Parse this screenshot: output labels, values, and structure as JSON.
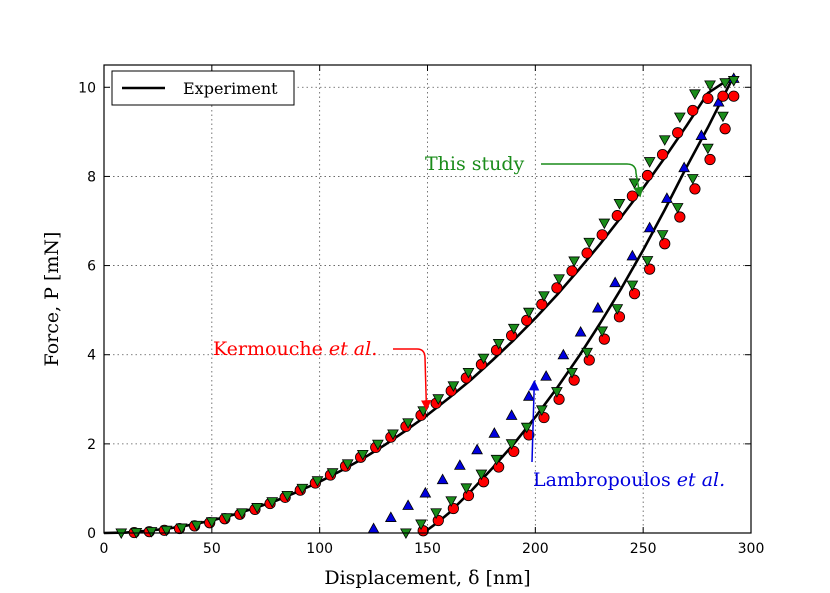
{
  "chart_data": {
    "type": "line",
    "xlabel": "Displacement, δ [nm]",
    "ylabel": "Force, P [mN]",
    "xlim": [
      0,
      300
    ],
    "ylim": [
      0,
      10.5
    ],
    "xticks": [
      0,
      50,
      100,
      150,
      200,
      250,
      300
    ],
    "yticks": [
      0,
      2,
      4,
      6,
      8,
      10
    ],
    "grid": true,
    "legend": {
      "location": "top-left",
      "entries": [
        "Experiment"
      ]
    },
    "colors": {
      "experiment": "#000000",
      "this_study": "#1a8c1a",
      "kermouche": "#ff0000",
      "lambropoulos": "#0000dd"
    },
    "series": [
      {
        "name": "Experiment (loading)",
        "style": "line",
        "x": [
          0,
          10,
          20,
          30,
          40,
          50,
          60,
          70,
          80,
          90,
          100,
          110,
          120,
          130,
          140,
          150,
          160,
          170,
          180,
          190,
          200,
          210,
          220,
          230,
          240,
          250,
          260,
          270,
          280,
          292
        ],
        "y": [
          0,
          0.01,
          0.05,
          0.1,
          0.18,
          0.28,
          0.41,
          0.56,
          0.73,
          0.93,
          1.15,
          1.4,
          1.67,
          1.97,
          2.3,
          2.65,
          3.03,
          3.43,
          3.87,
          4.33,
          4.82,
          5.34,
          5.9,
          6.48,
          7.1,
          7.74,
          8.42,
          9.13,
          9.87,
          10.25
        ]
      },
      {
        "name": "Experiment (unloading)",
        "style": "line",
        "x": [
          148,
          155,
          160,
          170,
          180,
          190,
          200,
          210,
          220,
          230,
          240,
          250,
          260,
          270,
          280,
          292
        ],
        "y": [
          0,
          0.25,
          0.45,
          0.93,
          1.45,
          2.0,
          2.6,
          3.25,
          3.95,
          4.7,
          5.5,
          6.35,
          7.25,
          8.2,
          9.1,
          10.25
        ]
      },
      {
        "name": "This study (loading)",
        "marker": "triangle-down",
        "x": [
          8,
          15,
          22,
          29,
          36,
          43,
          50,
          57,
          64,
          71,
          78,
          85,
          92,
          99,
          106,
          113,
          120,
          127,
          134,
          141,
          148,
          155,
          162,
          169,
          176,
          183,
          190,
          197,
          204,
          211,
          218,
          225,
          232,
          239,
          246,
          253,
          260,
          267,
          274,
          281,
          288,
          292
        ],
        "y": [
          0,
          0.01,
          0.03,
          0.06,
          0.11,
          0.17,
          0.25,
          0.34,
          0.45,
          0.57,
          0.7,
          0.84,
          1.0,
          1.17,
          1.35,
          1.55,
          1.76,
          1.99,
          2.22,
          2.47,
          2.74,
          3.01,
          3.3,
          3.6,
          3.92,
          4.25,
          4.59,
          4.95,
          5.32,
          5.7,
          6.1,
          6.52,
          6.95,
          7.39,
          7.85,
          8.33,
          8.82,
          9.33,
          9.85,
          10.05,
          10.1,
          10.15
        ]
      },
      {
        "name": "This study (unloading)",
        "marker": "triangle-down",
        "x": [
          140,
          147,
          154,
          161,
          168,
          175,
          182,
          189,
          196,
          203,
          210,
          217,
          224,
          231,
          238,
          245,
          252,
          259,
          266,
          273,
          280,
          287
        ],
        "y": [
          0,
          0.2,
          0.45,
          0.72,
          1.01,
          1.32,
          1.65,
          2.0,
          2.37,
          2.76,
          3.17,
          3.6,
          4.05,
          4.53,
          5.03,
          5.56,
          6.11,
          6.69,
          7.3,
          7.95,
          8.63,
          9.35
        ]
      },
      {
        "name": "Kermouche et al. (loading)",
        "marker": "circle",
        "x": [
          14,
          21,
          28,
          35,
          42,
          49,
          56,
          63,
          70,
          77,
          84,
          91,
          98,
          105,
          112,
          119,
          126,
          133,
          140,
          147,
          154,
          161,
          168,
          175,
          182,
          189,
          196,
          203,
          210,
          217,
          224,
          231,
          238,
          245,
          252,
          259,
          266,
          273,
          280,
          287,
          292
        ],
        "y": [
          0.01,
          0.03,
          0.06,
          0.1,
          0.16,
          0.23,
          0.32,
          0.42,
          0.53,
          0.66,
          0.8,
          0.96,
          1.12,
          1.3,
          1.5,
          1.7,
          1.92,
          2.15,
          2.39,
          2.64,
          2.91,
          3.19,
          3.48,
          3.78,
          4.1,
          4.43,
          4.77,
          5.13,
          5.5,
          5.88,
          6.28,
          6.69,
          7.12,
          7.56,
          8.02,
          8.49,
          8.98,
          9.48,
          9.75,
          9.8,
          9.8
        ]
      },
      {
        "name": "Kermouche et al. (unloading)",
        "marker": "circle",
        "x": [
          148,
          155,
          162,
          169,
          176,
          183,
          190,
          197,
          204,
          211,
          218,
          225,
          232,
          239,
          246,
          253,
          260,
          267,
          274,
          281,
          288
        ],
        "y": [
          0.05,
          0.28,
          0.55,
          0.84,
          1.15,
          1.48,
          1.83,
          2.2,
          2.59,
          3.0,
          3.43,
          3.88,
          4.35,
          4.85,
          5.37,
          5.92,
          6.49,
          7.09,
          7.72,
          8.38,
          9.07
        ]
      },
      {
        "name": "Lambropoulos et al. (unloading)",
        "marker": "triangle-up",
        "x": [
          125,
          133,
          141,
          149,
          157,
          165,
          173,
          181,
          189,
          197,
          205,
          213,
          221,
          229,
          237,
          245,
          253,
          261,
          269,
          277,
          285,
          292
        ],
        "y": [
          0.1,
          0.35,
          0.62,
          0.9,
          1.2,
          1.52,
          1.87,
          2.24,
          2.64,
          3.07,
          3.52,
          4.0,
          4.51,
          5.05,
          5.62,
          6.22,
          6.85,
          7.51,
          8.2,
          8.92,
          9.67,
          10.2
        ]
      }
    ],
    "annotations": [
      {
        "text": "This study",
        "color": "#1a8c1a",
        "arrow_to": [
          250,
          7.55
        ]
      },
      {
        "text": "Kermouche",
        "italic_suffix": "et al.",
        "color": "#ff0000",
        "arrow_to": [
          150,
          2.7
        ]
      },
      {
        "text": "Lambropoulos",
        "italic_suffix": "et al.",
        "color": "#0000dd",
        "arrow_to": [
          200,
          3.5
        ]
      }
    ]
  }
}
